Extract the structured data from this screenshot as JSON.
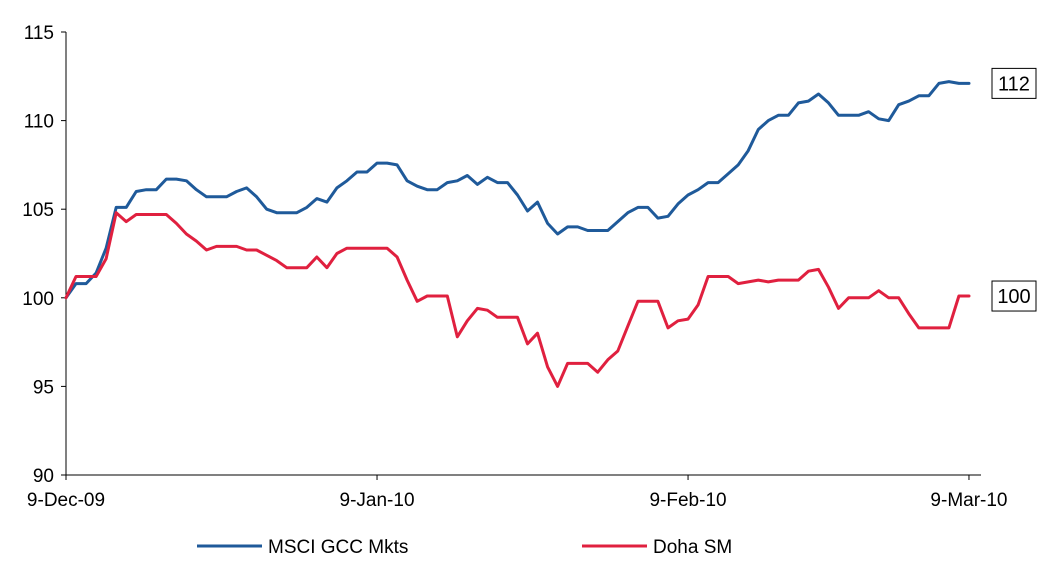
{
  "chart_data": {
    "type": "line",
    "title": "",
    "xlabel": "",
    "ylabel": "",
    "ylim": [
      90,
      115
    ],
    "yticks": [
      "90",
      "95",
      "100",
      "105",
      "110",
      "115"
    ],
    "xticks": [
      {
        "label": "9-Dec-09",
        "date": "2009-12-09"
      },
      {
        "label": "9-Jan-10",
        "date": "2010-01-09"
      },
      {
        "label": "9-Feb-10",
        "date": "2010-02-09"
      },
      {
        "label": "9-Mar-10",
        "date": "2010-03-09"
      }
    ],
    "xlim": [
      "2009-12-09",
      "2010-03-10"
    ],
    "grid": false,
    "legend_position": "bottom",
    "series": [
      {
        "name": "MSCI GCC Mkts",
        "color": "#1f5a9a",
        "end_label": "112",
        "points": [
          [
            "2009-12-09",
            100.0
          ],
          [
            "2009-12-10",
            100.8
          ],
          [
            "2009-12-11",
            100.8
          ],
          [
            "2009-12-12",
            101.4
          ],
          [
            "2009-12-13",
            102.8
          ],
          [
            "2009-12-14",
            105.1
          ],
          [
            "2009-12-15",
            105.1
          ],
          [
            "2009-12-16",
            106.0
          ],
          [
            "2009-12-17",
            106.1
          ],
          [
            "2009-12-18",
            106.1
          ],
          [
            "2009-12-19",
            106.7
          ],
          [
            "2009-12-20",
            106.7
          ],
          [
            "2009-12-21",
            106.6
          ],
          [
            "2009-12-22",
            106.1
          ],
          [
            "2009-12-23",
            105.7
          ],
          [
            "2009-12-24",
            105.7
          ],
          [
            "2009-12-25",
            105.7
          ],
          [
            "2009-12-26",
            106.0
          ],
          [
            "2009-12-27",
            106.2
          ],
          [
            "2009-12-28",
            105.7
          ],
          [
            "2009-12-29",
            105.0
          ],
          [
            "2009-12-30",
            104.8
          ],
          [
            "2009-12-31",
            104.8
          ],
          [
            "2010-01-01",
            104.8
          ],
          [
            "2010-01-02",
            105.1
          ],
          [
            "2010-01-03",
            105.6
          ],
          [
            "2010-01-04",
            105.4
          ],
          [
            "2010-01-05",
            106.2
          ],
          [
            "2010-01-06",
            106.6
          ],
          [
            "2010-01-07",
            107.1
          ],
          [
            "2010-01-08",
            107.1
          ],
          [
            "2010-01-09",
            107.6
          ],
          [
            "2010-01-10",
            107.6
          ],
          [
            "2010-01-11",
            107.5
          ],
          [
            "2010-01-12",
            106.6
          ],
          [
            "2010-01-13",
            106.3
          ],
          [
            "2010-01-14",
            106.1
          ],
          [
            "2010-01-15",
            106.1
          ],
          [
            "2010-01-16",
            106.5
          ],
          [
            "2010-01-17",
            106.6
          ],
          [
            "2010-01-18",
            106.9
          ],
          [
            "2010-01-19",
            106.4
          ],
          [
            "2010-01-20",
            106.8
          ],
          [
            "2010-01-21",
            106.5
          ],
          [
            "2010-01-22",
            106.5
          ],
          [
            "2010-01-23",
            105.8
          ],
          [
            "2010-01-24",
            104.9
          ],
          [
            "2010-01-25",
            105.4
          ],
          [
            "2010-01-26",
            104.2
          ],
          [
            "2010-01-27",
            103.6
          ],
          [
            "2010-01-28",
            104.0
          ],
          [
            "2010-01-29",
            104.0
          ],
          [
            "2010-01-30",
            103.8
          ],
          [
            "2010-01-31",
            103.8
          ],
          [
            "2010-02-01",
            103.8
          ],
          [
            "2010-02-02",
            104.3
          ],
          [
            "2010-02-03",
            104.8
          ],
          [
            "2010-02-04",
            105.1
          ],
          [
            "2010-02-05",
            105.1
          ],
          [
            "2010-02-06",
            104.5
          ],
          [
            "2010-02-07",
            104.6
          ],
          [
            "2010-02-08",
            105.3
          ],
          [
            "2010-02-09",
            105.8
          ],
          [
            "2010-02-10",
            106.1
          ],
          [
            "2010-02-11",
            106.5
          ],
          [
            "2010-02-12",
            106.5
          ],
          [
            "2010-02-13",
            107.0
          ],
          [
            "2010-02-14",
            107.5
          ],
          [
            "2010-02-15",
            108.3
          ],
          [
            "2010-02-16",
            109.5
          ],
          [
            "2010-02-17",
            110.0
          ],
          [
            "2010-02-18",
            110.3
          ],
          [
            "2010-02-19",
            110.3
          ],
          [
            "2010-02-20",
            111.0
          ],
          [
            "2010-02-21",
            111.1
          ],
          [
            "2010-02-22",
            111.5
          ],
          [
            "2010-02-23",
            111.0
          ],
          [
            "2010-02-24",
            110.3
          ],
          [
            "2010-02-25",
            110.3
          ],
          [
            "2010-02-26",
            110.3
          ],
          [
            "2010-02-27",
            110.5
          ],
          [
            "2010-02-28",
            110.1
          ],
          [
            "2010-03-01",
            110.0
          ],
          [
            "2010-03-02",
            110.9
          ],
          [
            "2010-03-03",
            111.1
          ],
          [
            "2010-03-04",
            111.4
          ],
          [
            "2010-03-05",
            111.4
          ],
          [
            "2010-03-06",
            112.1
          ],
          [
            "2010-03-07",
            112.2
          ],
          [
            "2010-03-08",
            112.1
          ],
          [
            "2010-03-09",
            112.1
          ]
        ]
      },
      {
        "name": "Doha SM",
        "color": "#e0203f",
        "end_label": "100",
        "points": [
          [
            "2009-12-09",
            100.0
          ],
          [
            "2009-12-10",
            101.2
          ],
          [
            "2009-12-11",
            101.2
          ],
          [
            "2009-12-12",
            101.2
          ],
          [
            "2009-12-13",
            102.2
          ],
          [
            "2009-12-14",
            104.8
          ],
          [
            "2009-12-15",
            104.3
          ],
          [
            "2009-12-16",
            104.7
          ],
          [
            "2009-12-17",
            104.7
          ],
          [
            "2009-12-18",
            104.7
          ],
          [
            "2009-12-19",
            104.7
          ],
          [
            "2009-12-20",
            104.2
          ],
          [
            "2009-12-21",
            103.6
          ],
          [
            "2009-12-22",
            103.2
          ],
          [
            "2009-12-23",
            102.7
          ],
          [
            "2009-12-24",
            102.9
          ],
          [
            "2009-12-25",
            102.9
          ],
          [
            "2009-12-26",
            102.9
          ],
          [
            "2009-12-27",
            102.7
          ],
          [
            "2009-12-28",
            102.7
          ],
          [
            "2009-12-29",
            102.4
          ],
          [
            "2009-12-30",
            102.1
          ],
          [
            "2009-12-31",
            101.7
          ],
          [
            "2010-01-01",
            101.7
          ],
          [
            "2010-01-02",
            101.7
          ],
          [
            "2010-01-03",
            102.3
          ],
          [
            "2010-01-04",
            101.7
          ],
          [
            "2010-01-05",
            102.5
          ],
          [
            "2010-01-06",
            102.8
          ],
          [
            "2010-01-07",
            102.8
          ],
          [
            "2010-01-08",
            102.8
          ],
          [
            "2010-01-09",
            102.8
          ],
          [
            "2010-01-10",
            102.8
          ],
          [
            "2010-01-11",
            102.3
          ],
          [
            "2010-01-12",
            101.0
          ],
          [
            "2010-01-13",
            99.8
          ],
          [
            "2010-01-14",
            100.1
          ],
          [
            "2010-01-15",
            100.1
          ],
          [
            "2010-01-16",
            100.1
          ],
          [
            "2010-01-17",
            97.8
          ],
          [
            "2010-01-18",
            98.7
          ],
          [
            "2010-01-19",
            99.4
          ],
          [
            "2010-01-20",
            99.3
          ],
          [
            "2010-01-21",
            98.9
          ],
          [
            "2010-01-22",
            98.9
          ],
          [
            "2010-01-23",
            98.9
          ],
          [
            "2010-01-24",
            97.4
          ],
          [
            "2010-01-25",
            98.0
          ],
          [
            "2010-01-26",
            96.1
          ],
          [
            "2010-01-27",
            95.0
          ],
          [
            "2010-01-28",
            96.3
          ],
          [
            "2010-01-29",
            96.3
          ],
          [
            "2010-01-30",
            96.3
          ],
          [
            "2010-01-31",
            95.8
          ],
          [
            "2010-02-01",
            96.5
          ],
          [
            "2010-02-02",
            97.0
          ],
          [
            "2010-02-03",
            98.4
          ],
          [
            "2010-02-04",
            99.8
          ],
          [
            "2010-02-05",
            99.8
          ],
          [
            "2010-02-06",
            99.8
          ],
          [
            "2010-02-07",
            98.3
          ],
          [
            "2010-02-08",
            98.7
          ],
          [
            "2010-02-09",
            98.8
          ],
          [
            "2010-02-10",
            99.6
          ],
          [
            "2010-02-11",
            101.2
          ],
          [
            "2010-02-12",
            101.2
          ],
          [
            "2010-02-13",
            101.2
          ],
          [
            "2010-02-14",
            100.8
          ],
          [
            "2010-02-15",
            100.9
          ],
          [
            "2010-02-16",
            101.0
          ],
          [
            "2010-02-17",
            100.9
          ],
          [
            "2010-02-18",
            101.0
          ],
          [
            "2010-02-19",
            101.0
          ],
          [
            "2010-02-20",
            101.0
          ],
          [
            "2010-02-21",
            101.5
          ],
          [
            "2010-02-22",
            101.6
          ],
          [
            "2010-02-23",
            100.6
          ],
          [
            "2010-02-24",
            99.4
          ],
          [
            "2010-02-25",
            100.0
          ],
          [
            "2010-02-26",
            100.0
          ],
          [
            "2010-02-27",
            100.0
          ],
          [
            "2010-02-28",
            100.4
          ],
          [
            "2010-03-01",
            100.0
          ],
          [
            "2010-03-02",
            100.0
          ],
          [
            "2010-03-03",
            99.1
          ],
          [
            "2010-03-04",
            98.3
          ],
          [
            "2010-03-05",
            98.3
          ],
          [
            "2010-03-06",
            98.3
          ],
          [
            "2010-03-07",
            98.3
          ],
          [
            "2010-03-08",
            100.1
          ],
          [
            "2010-03-09",
            100.1
          ]
        ]
      }
    ]
  }
}
